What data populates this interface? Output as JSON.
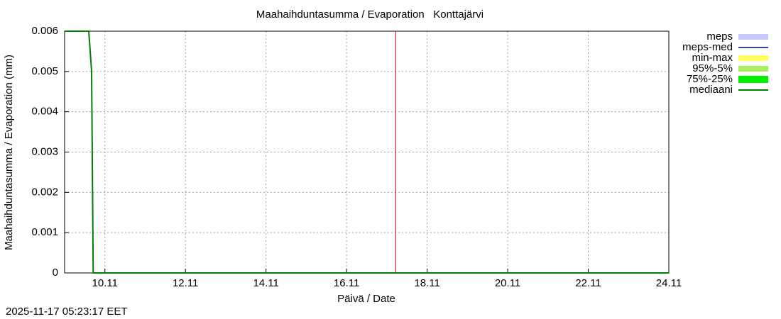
{
  "chart_data": {
    "type": "line",
    "title": "Maahaihduntasumma / Evaporation   Konttajärvi",
    "xlabel": "Päivä / Date",
    "ylabel": "Maahaihduntasumma / Evaporation (mm)",
    "timestamp": "2025-11-17 05:23:17 EET",
    "x": [
      9,
      9.6,
      9.67,
      9.71,
      24
    ],
    "xlim": [
      9,
      24
    ],
    "xticks": [
      {
        "value": 10,
        "label": "10.11"
      },
      {
        "value": 12,
        "label": "12.11"
      },
      {
        "value": 14,
        "label": "14.11"
      },
      {
        "value": 16,
        "label": "16.11"
      },
      {
        "value": 18,
        "label": "18.11"
      },
      {
        "value": 20,
        "label": "20.11"
      },
      {
        "value": 22,
        "label": "22.11"
      },
      {
        "value": 24,
        "label": "24.11"
      }
    ],
    "ylim": [
      0,
      0.006
    ],
    "yticks": [
      0,
      0.001,
      0.002,
      0.003,
      0.004,
      0.005,
      0.006
    ],
    "grid": true,
    "legend": "outside-right",
    "now_marker": {
      "x": 17.22,
      "color": "#e00000"
    },
    "series": [
      {
        "name": "meps",
        "color": "#c8c8ff",
        "style": "band",
        "values": [
          null,
          null,
          null,
          null,
          null
        ]
      },
      {
        "name": "meps-med",
        "color": "#4040a0",
        "style": "line",
        "values": [
          null,
          null,
          null,
          null,
          null
        ]
      },
      {
        "name": "min-max",
        "color": "#ffff60",
        "style": "band",
        "values": [
          null,
          null,
          null,
          null,
          null
        ]
      },
      {
        "name": "95%-5%",
        "color": "#a8f060",
        "style": "band",
        "values": [
          null,
          null,
          null,
          null,
          null
        ]
      },
      {
        "name": "75%-25%",
        "color": "#00f000",
        "style": "thickband",
        "values": [
          null,
          null,
          null,
          null,
          null
        ]
      },
      {
        "name": "mediaani",
        "color": "#008000",
        "style": "line",
        "values": [
          0.006,
          0.006,
          0.005,
          0,
          0
        ]
      }
    ]
  }
}
